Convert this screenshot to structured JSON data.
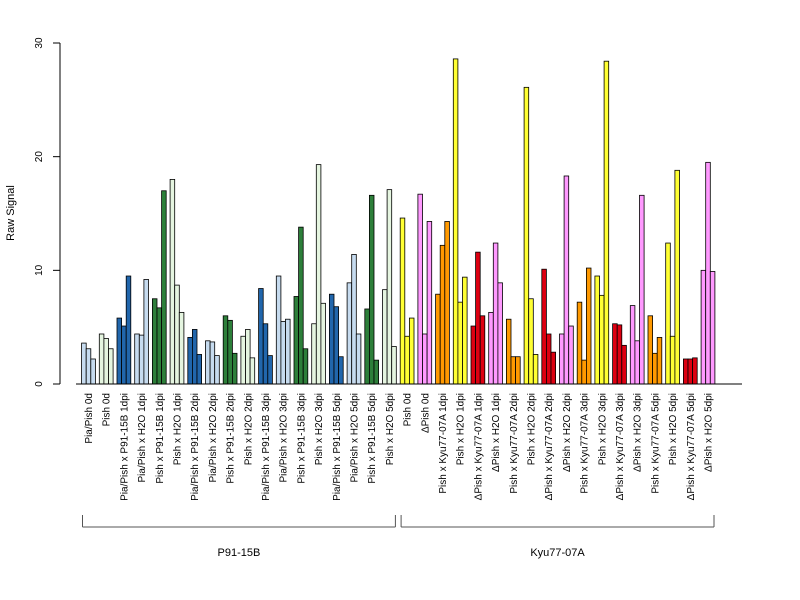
{
  "chart_data": {
    "type": "bar",
    "ylabel": "Raw Signal",
    "xlabel": "",
    "ylim": [
      0,
      30
    ],
    "yticks": [
      0,
      10,
      20,
      30
    ],
    "grid": false,
    "categories": [
      "Pia/Pish 0d",
      "Pish 0d",
      "Pia/Pish x P91-15B 1dpi",
      "Pia/Pish x H2O 1dpi",
      "Pish x P91-15B 1dpi",
      "Pish x H2O 1dpi",
      "Pia/Pish x P91-15B 2dpi",
      "Pia/Pish x H2O 2dpi",
      "Pish x P91-15B 2dpi",
      "Pish x H2O 2dpi",
      "Pia/Pish x P91-15B 3dpi",
      "Pia/Pish x H2O 3dpi",
      "Pish x P91-15B 3dpi",
      "Pish x H2O 3dpi",
      "Pia/Pish x P91-15B 5dpi",
      "Pia/Pish x H2O 5dpi",
      "Pish x P91-15B 5dpi",
      "Pish x H2O 5dpi",
      "Pish 0d",
      "ΔPish 0d",
      "Pish x Kyu77-07A 1dpi",
      "Pish x H2O 1dpi",
      "ΔPish x Kyu77-07A 1dpi",
      "ΔPish x H2O 1dpi",
      "Pish x Kyu77-07A 2dpi",
      "Pish x H2O 2dpi",
      "ΔPish x Kyu77-07A 2dpi",
      "ΔPish x H2O 2dpi",
      "Pish x Kyu77-07A 3dpi",
      "Pish x H2O 3dpi",
      "ΔPish x Kyu77-07A 3dpi",
      "ΔPish x H2O 3dpi",
      "Pish x Kyu77-07A 5dpi",
      "Pish x H2O 5dpi",
      "ΔPish x Kyu77-07A 5dpi",
      "ΔPish x H2O 5dpi"
    ],
    "colors": [
      "#c6dbef",
      "#e5f5e0",
      "#2166ac",
      "#c6dbef",
      "#2d7f3a",
      "#e5f5e0",
      "#2166ac",
      "#c6dbef",
      "#2d7f3a",
      "#e5f5e0",
      "#2166ac",
      "#c6dbef",
      "#2d7f3a",
      "#e5f5e0",
      "#2166ac",
      "#c6dbef",
      "#2d7f3a",
      "#e5f5e0",
      "#ffff33",
      "#ff99ff",
      "#ff9900",
      "#ffff33",
      "#dd0011",
      "#ff99ff",
      "#ff9900",
      "#ffff33",
      "#dd0011",
      "#ff99ff",
      "#ff9900",
      "#ffff33",
      "#dd0011",
      "#ff99ff",
      "#ff9900",
      "#ffff33",
      "#dd0011",
      "#ff99ff"
    ],
    "values": [
      [
        3.6,
        3.1,
        2.2
      ],
      [
        4.4,
        4.0,
        3.1
      ],
      [
        5.8,
        5.1,
        9.5
      ],
      [
        4.4,
        4.3,
        9.2
      ],
      [
        7.5,
        6.7,
        17.0
      ],
      [
        18.0,
        8.7,
        6.3
      ],
      [
        4.1,
        4.8,
        2.6
      ],
      [
        3.8,
        3.7,
        2.5
      ],
      [
        6.0,
        5.6,
        2.7
      ],
      [
        4.2,
        4.8,
        2.3
      ],
      [
        8.4,
        5.3,
        2.5
      ],
      [
        9.5,
        5.5,
        5.7
      ],
      [
        7.7,
        13.8,
        3.1
      ],
      [
        5.3,
        19.3,
        7.1
      ],
      [
        7.9,
        6.8,
        2.4
      ],
      [
        8.9,
        11.4,
        4.4
      ],
      [
        6.6,
        16.6,
        2.1
      ],
      [
        8.3,
        17.1,
        3.3
      ],
      [
        14.6,
        4.2,
        5.8
      ],
      [
        16.7,
        4.4,
        14.3
      ],
      [
        7.9,
        12.2,
        14.3
      ],
      [
        28.6,
        7.2,
        9.4
      ],
      [
        5.1,
        11.6,
        6.0
      ],
      [
        6.3,
        12.4,
        8.9
      ],
      [
        5.7,
        2.4,
        2.4
      ],
      [
        26.1,
        7.5,
        2.6
      ],
      [
        10.1,
        4.4,
        2.8
      ],
      [
        4.4,
        18.3,
        5.1
      ],
      [
        7.2,
        2.1,
        10.2
      ],
      [
        9.5,
        7.8,
        28.4
      ],
      [
        5.3,
        5.2,
        3.4
      ],
      [
        6.9,
        3.8,
        16.6
      ],
      [
        6.0,
        2.7,
        4.1
      ],
      [
        12.4,
        4.2,
        18.8
      ],
      [
        2.2,
        2.2,
        2.3
      ],
      [
        10.0,
        19.5,
        9.9
      ]
    ],
    "groups": [
      {
        "label": "P91-15B",
        "start": 0,
        "end": 17
      },
      {
        "label": "Kyu77-07A",
        "start": 18,
        "end": 35
      }
    ]
  }
}
